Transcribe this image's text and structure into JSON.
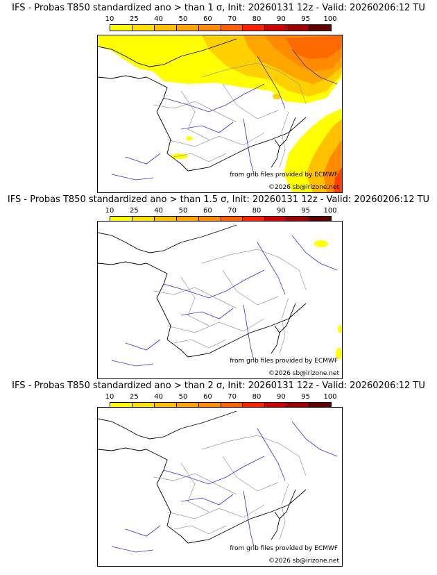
{
  "scale": {
    "labels": [
      "10",
      "25",
      "40",
      "50",
      "60",
      "70",
      "80",
      "90",
      "95",
      "100"
    ],
    "colors": [
      "#ffff00",
      "#ffe000",
      "#ffc000",
      "#ffa500",
      "#ff8c00",
      "#ff6000",
      "#ff2000",
      "#d00000",
      "#a00000",
      "#600000"
    ]
  },
  "panels": [
    {
      "title": "IFS - Probas T850  standardized ano > than 1 σ, Init: 20260131 12z - Valid: 20260206:12 TU",
      "credit_source": "from grib files provided by ECMWF",
      "credit_copyright": "©2026 sb@irizone.net"
    },
    {
      "title": "IFS - Probas T850  standardized ano > than 1.5 σ, Init: 20260131 12z - Valid: 20260206:12 TU",
      "credit_source": "from grib files provided by ECMWF",
      "credit_copyright": "©2026 sb@irizone.net"
    },
    {
      "title": "IFS - Probas T850  standardized ano > than 2 σ, Init: 20260131 12z - Valid: 20260206:12 TU",
      "credit_source": "from grib files provided by ECMWF",
      "credit_copyright": "©2026 sb@irizone.net"
    }
  ],
  "colors": {
    "coast": "#000000",
    "rivers": "#3030e0",
    "borders": "#999999"
  }
}
